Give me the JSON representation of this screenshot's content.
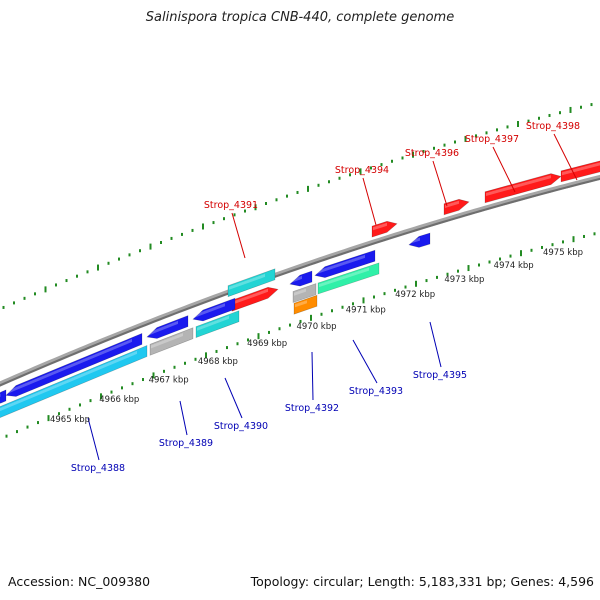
{
  "title": "Salinispora tropica CNB-440, complete genome",
  "footer": {
    "accession": "Accession: NC_009380",
    "summary": "Topology: circular; Length: 5,183,331 bp; Genes: 4,596"
  },
  "colors": {
    "backbone": "#8a8a8a",
    "tick": "#228b22",
    "label_forward": "#d40000",
    "label_reverse": "#0000b4",
    "red": "#ff1a1a",
    "blue": "#1a1aee",
    "cyan": "#22d4d4",
    "skyblue": "#20c8f0",
    "gray": "#b4b4b4",
    "mint": "#30f0a8",
    "orange": "#ff8c00"
  },
  "kbp_labels": [
    {
      "kbp": 4965,
      "text": "4965 kbp"
    },
    {
      "kbp": 4966,
      "text": "4966 kbp"
    },
    {
      "kbp": 4967,
      "text": "4967 kbp"
    },
    {
      "kbp": 4968,
      "text": "4968 kbp"
    },
    {
      "kbp": 4969,
      "text": "4969 kbp"
    },
    {
      "kbp": 4970,
      "text": "4970 kbp"
    },
    {
      "kbp": 4971,
      "text": "4971 kbp"
    },
    {
      "kbp": 4972,
      "text": "4972 kbp"
    },
    {
      "kbp": 4973,
      "text": "4973 kbp"
    },
    {
      "kbp": 4974,
      "text": "4974 kbp"
    },
    {
      "kbp": 4975,
      "text": "4975 kbp"
    }
  ],
  "gene_labels": [
    {
      "id": "Strop_4391",
      "strand": "forward"
    },
    {
      "id": "Strop_4394",
      "strand": "forward"
    },
    {
      "id": "Strop_4396",
      "strand": "forward"
    },
    {
      "id": "Strop_4397",
      "strand": "forward"
    },
    {
      "id": "Strop_4398",
      "strand": "forward"
    },
    {
      "id": "Strop_4388",
      "strand": "reverse"
    },
    {
      "id": "Strop_4389",
      "strand": "reverse"
    },
    {
      "id": "Strop_4390",
      "strand": "reverse"
    },
    {
      "id": "Strop_4392",
      "strand": "reverse"
    },
    {
      "id": "Strop_4393",
      "strand": "reverse"
    },
    {
      "id": "Strop_4395",
      "strand": "reverse"
    }
  ]
}
